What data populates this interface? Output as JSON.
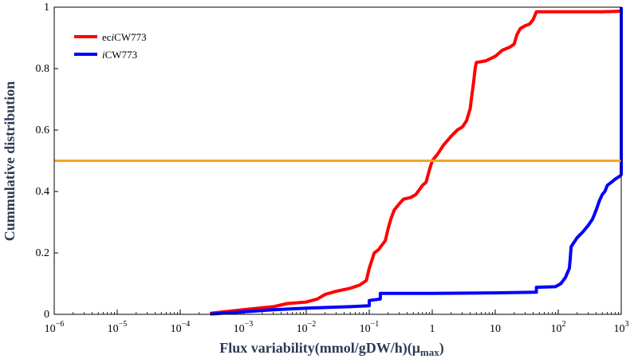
{
  "chart_data": {
    "type": "line",
    "x_scale": "log",
    "xlim": [
      1e-06,
      1000
    ],
    "ylim": [
      0,
      1
    ],
    "grid": false,
    "legend_position": "top-left",
    "xlabel": "Flux variability(mmol/gDW/h)(μ",
    "xlabel_sub": "max",
    "xlabel_end": ")",
    "ylabel": "Cummulative distribution",
    "x_ticks": [
      {
        "value": 1e-06,
        "base": "10",
        "exp": "−6"
      },
      {
        "value": 1e-05,
        "base": "10",
        "exp": "−5"
      },
      {
        "value": 0.0001,
        "base": "10",
        "exp": "−4"
      },
      {
        "value": 0.001,
        "base": "10",
        "exp": "−3"
      },
      {
        "value": 0.01,
        "base": "10",
        "exp": "−2"
      },
      {
        "value": 0.1,
        "base": "10",
        "exp": "−1"
      },
      {
        "value": 1,
        "base": "1",
        "exp": ""
      },
      {
        "value": 10,
        "base": "10",
        "exp": ""
      },
      {
        "value": 100,
        "base": "10",
        "exp": "2"
      },
      {
        "value": 1000,
        "base": "10",
        "exp": "3"
      }
    ],
    "y_ticks": [
      {
        "value": 0,
        "label": "0"
      },
      {
        "value": 0.2,
        "label": "0.2"
      },
      {
        "value": 0.4,
        "label": "0.4"
      },
      {
        "value": 0.6,
        "label": "0.6"
      },
      {
        "value": 0.8,
        "label": "0.8"
      },
      {
        "value": 1,
        "label": "1"
      }
    ],
    "reference_line": {
      "y": 0.5,
      "color": "#f5a623"
    },
    "series": [
      {
        "name_prefix": "ec",
        "name_italic": "i",
        "name_suffix": "CW773",
        "color": "#ff0000",
        "points": [
          [
            0.0003,
            0.003
          ],
          [
            0.001,
            0.015
          ],
          [
            0.003,
            0.025
          ],
          [
            0.005,
            0.035
          ],
          [
            0.01,
            0.04
          ],
          [
            0.015,
            0.05
          ],
          [
            0.02,
            0.065
          ],
          [
            0.03,
            0.075
          ],
          [
            0.05,
            0.085
          ],
          [
            0.07,
            0.095
          ],
          [
            0.09,
            0.11
          ],
          [
            0.1,
            0.15
          ],
          [
            0.12,
            0.2
          ],
          [
            0.14,
            0.21
          ],
          [
            0.18,
            0.24
          ],
          [
            0.2,
            0.28
          ],
          [
            0.22,
            0.31
          ],
          [
            0.25,
            0.34
          ],
          [
            0.3,
            0.36
          ],
          [
            0.35,
            0.375
          ],
          [
            0.45,
            0.38
          ],
          [
            0.55,
            0.39
          ],
          [
            0.7,
            0.42
          ],
          [
            0.8,
            0.43
          ],
          [
            0.9,
            0.47
          ],
          [
            1.0,
            0.5
          ],
          [
            1.2,
            0.52
          ],
          [
            1.5,
            0.55
          ],
          [
            2.0,
            0.58
          ],
          [
            2.5,
            0.6
          ],
          [
            3.0,
            0.61
          ],
          [
            3.5,
            0.63
          ],
          [
            4.0,
            0.67
          ],
          [
            4.3,
            0.72
          ],
          [
            4.5,
            0.75
          ],
          [
            4.8,
            0.8
          ],
          [
            5.0,
            0.82
          ],
          [
            7.0,
            0.825
          ],
          [
            10.0,
            0.84
          ],
          [
            13.0,
            0.86
          ],
          [
            17.0,
            0.87
          ],
          [
            20.0,
            0.88
          ],
          [
            22.0,
            0.91
          ],
          [
            25.0,
            0.93
          ],
          [
            30.0,
            0.94
          ],
          [
            35.0,
            0.945
          ],
          [
            40.0,
            0.96
          ],
          [
            45.0,
            0.985
          ],
          [
            100.0,
            0.985
          ],
          [
            500.0,
            0.985
          ],
          [
            1000.0,
            0.987
          ],
          [
            1000.0,
            1.0
          ]
        ]
      },
      {
        "name_prefix": "",
        "name_italic": "i",
        "name_suffix": "CW773",
        "color": "#0000ff",
        "points": [
          [
            0.0003,
            0.001
          ],
          [
            0.001,
            0.008
          ],
          [
            0.003,
            0.015
          ],
          [
            0.01,
            0.02
          ],
          [
            0.05,
            0.025
          ],
          [
            0.1,
            0.028
          ],
          [
            0.1,
            0.045
          ],
          [
            0.15,
            0.05
          ],
          [
            0.15,
            0.068
          ],
          [
            1.0,
            0.068
          ],
          [
            10.0,
            0.07
          ],
          [
            45.0,
            0.072
          ],
          [
            45.0,
            0.088
          ],
          [
            90.0,
            0.09
          ],
          [
            110.0,
            0.1
          ],
          [
            130.0,
            0.12
          ],
          [
            150.0,
            0.15
          ],
          [
            155.0,
            0.18
          ],
          [
            160.0,
            0.22
          ],
          [
            200.0,
            0.25
          ],
          [
            250.0,
            0.27
          ],
          [
            300.0,
            0.29
          ],
          [
            350.0,
            0.31
          ],
          [
            400.0,
            0.34
          ],
          [
            450.0,
            0.37
          ],
          [
            500.0,
            0.39
          ],
          [
            550.0,
            0.4
          ],
          [
            600.0,
            0.42
          ],
          [
            700.0,
            0.43
          ],
          [
            800.0,
            0.44
          ],
          [
            950.0,
            0.45
          ],
          [
            1000.0,
            0.455
          ],
          [
            1000.0,
            1.0
          ]
        ]
      }
    ]
  }
}
